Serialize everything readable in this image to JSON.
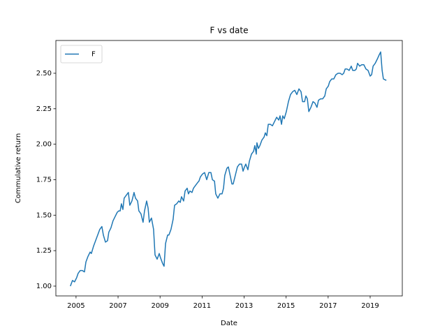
{
  "chart_data": {
    "type": "line",
    "title": "F vs date",
    "xlabel": "Date",
    "ylabel": "Commulative return",
    "legend": "upper left",
    "grid": false,
    "xlim": [
      2004.04,
      2020.53
    ],
    "xticks": [
      2005,
      2007,
      2009,
      2011,
      2013,
      2015,
      2017,
      2019
    ],
    "ylim": [
      0.931,
      2.731
    ],
    "yticks": [
      {
        "value": 1.0,
        "label": "1.00"
      },
      {
        "value": 1.25,
        "label": "1.25"
      },
      {
        "value": 1.5,
        "label": "1.50"
      },
      {
        "value": 1.75,
        "label": "1.75"
      },
      {
        "value": 2.0,
        "label": "2.00"
      },
      {
        "value": 2.25,
        "label": "2.25"
      },
      {
        "value": 2.5,
        "label": "2.50"
      }
    ],
    "x": [
      2004.73,
      2004.83,
      2004.93,
      2005.03,
      2005.1,
      2005.2,
      2005.3,
      2005.4,
      2005.47,
      2005.57,
      2005.67,
      2005.73,
      2005.83,
      2005.93,
      2006.03,
      2006.13,
      2006.23,
      2006.3,
      2006.4,
      2006.5,
      2006.56,
      2006.66,
      2006.76,
      2006.86,
      2006.96,
      2007.03,
      2007.1,
      2007.16,
      2007.23,
      2007.29,
      2007.39,
      2007.49,
      2007.56,
      2007.66,
      2007.76,
      2007.83,
      2007.93,
      2007.99,
      2008.09,
      2008.19,
      2008.26,
      2008.36,
      2008.43,
      2008.49,
      2008.59,
      2008.69,
      2008.76,
      2008.86,
      2008.96,
      2009.02,
      2009.12,
      2009.19,
      2009.26,
      2009.36,
      2009.42,
      2009.52,
      2009.62,
      2009.69,
      2009.79,
      2009.89,
      2009.96,
      2010.02,
      2010.12,
      2010.19,
      2010.29,
      2010.35,
      2010.42,
      2010.52,
      2010.59,
      2010.69,
      2010.79,
      2010.85,
      2010.92,
      2011.02,
      2011.12,
      2011.22,
      2011.32,
      2011.42,
      2011.49,
      2011.59,
      2011.65,
      2011.75,
      2011.85,
      2011.95,
      2012.02,
      2012.08,
      2012.18,
      2012.25,
      2012.35,
      2012.42,
      2012.48,
      2012.58,
      2012.68,
      2012.78,
      2012.88,
      2012.95,
      2013.02,
      2013.08,
      2013.18,
      2013.25,
      2013.35,
      2013.45,
      2013.51,
      2013.58,
      2013.61,
      2013.68,
      2013.75,
      2013.85,
      2013.95,
      2014.01,
      2014.08,
      2014.15,
      2014.25,
      2014.35,
      2014.45,
      2014.55,
      2014.65,
      2014.71,
      2014.78,
      2014.84,
      2014.91,
      2015.01,
      2015.11,
      2015.21,
      2015.31,
      2015.41,
      2015.51,
      2015.61,
      2015.71,
      2015.78,
      2015.88,
      2015.94,
      2016.01,
      2016.08,
      2016.18,
      2016.28,
      2016.37,
      2016.47,
      2016.54,
      2016.64,
      2016.74,
      2016.84,
      2016.91,
      2017.01,
      2017.07,
      2017.17,
      2017.27,
      2017.37,
      2017.47,
      2017.57,
      2017.67,
      2017.74,
      2017.81,
      2017.9,
      2018.0,
      2018.1,
      2018.17,
      2018.27,
      2018.34,
      2018.4,
      2018.5,
      2018.6,
      2018.7,
      2018.8,
      2018.9,
      2019.0,
      2019.07,
      2019.14,
      2019.24,
      2019.34,
      2019.43,
      2019.5,
      2019.57,
      2019.63,
      2019.77
    ],
    "series": [
      {
        "name": "F",
        "color": "#1f77b4",
        "values": [
          1.0,
          1.04,
          1.03,
          1.06,
          1.09,
          1.11,
          1.11,
          1.1,
          1.17,
          1.21,
          1.24,
          1.23,
          1.28,
          1.32,
          1.36,
          1.4,
          1.42,
          1.36,
          1.31,
          1.32,
          1.38,
          1.41,
          1.46,
          1.49,
          1.52,
          1.53,
          1.53,
          1.58,
          1.54,
          1.62,
          1.64,
          1.66,
          1.57,
          1.6,
          1.66,
          1.62,
          1.6,
          1.53,
          1.51,
          1.45,
          1.53,
          1.6,
          1.55,
          1.45,
          1.48,
          1.4,
          1.22,
          1.19,
          1.23,
          1.2,
          1.16,
          1.14,
          1.3,
          1.36,
          1.36,
          1.4,
          1.47,
          1.57,
          1.58,
          1.6,
          1.59,
          1.63,
          1.6,
          1.67,
          1.69,
          1.65,
          1.67,
          1.66,
          1.69,
          1.71,
          1.73,
          1.74,
          1.77,
          1.79,
          1.8,
          1.75,
          1.8,
          1.8,
          1.75,
          1.74,
          1.65,
          1.62,
          1.65,
          1.65,
          1.69,
          1.78,
          1.83,
          1.84,
          1.77,
          1.72,
          1.72,
          1.78,
          1.84,
          1.86,
          1.86,
          1.81,
          1.84,
          1.86,
          1.82,
          1.88,
          1.93,
          1.95,
          1.99,
          1.93,
          2.01,
          1.97,
          1.99,
          2.03,
          2.05,
          2.08,
          2.06,
          2.14,
          2.14,
          2.13,
          2.16,
          2.19,
          2.17,
          2.2,
          2.14,
          2.2,
          2.18,
          2.23,
          2.3,
          2.35,
          2.37,
          2.38,
          2.35,
          2.39,
          2.37,
          2.3,
          2.3,
          2.34,
          2.32,
          2.23,
          2.26,
          2.3,
          2.29,
          2.26,
          2.31,
          2.32,
          2.32,
          2.34,
          2.39,
          2.41,
          2.44,
          2.46,
          2.46,
          2.49,
          2.5,
          2.5,
          2.49,
          2.5,
          2.53,
          2.53,
          2.52,
          2.55,
          2.52,
          2.52,
          2.53,
          2.57,
          2.55,
          2.56,
          2.56,
          2.53,
          2.52,
          2.48,
          2.49,
          2.55,
          2.57,
          2.6,
          2.63,
          2.65,
          2.52,
          2.46,
          2.45
        ]
      }
    ]
  }
}
